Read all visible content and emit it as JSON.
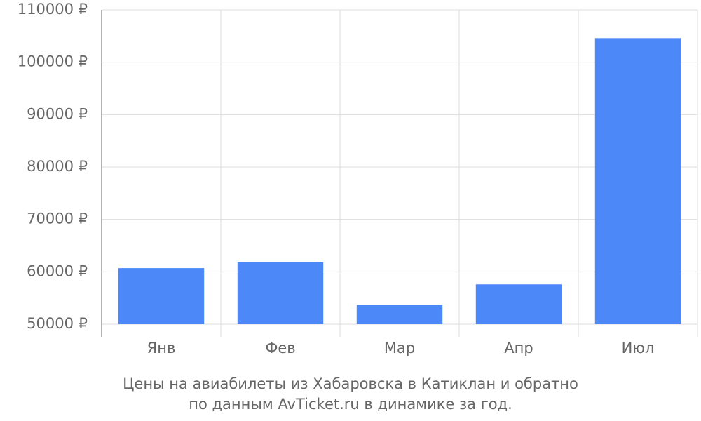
{
  "chart_data": {
    "type": "bar",
    "title": "Цены на авиабилеты из Хабаровска в Катиклан и обратно",
    "subtitle": "по данным AvTicket.ru в динамике за год.",
    "categories": [
      "Янв",
      "Фев",
      "Мар",
      "Апр",
      "Июл"
    ],
    "values": [
      60700,
      61800,
      53700,
      57600,
      104600
    ],
    "color": "#4d88f9",
    "ylim": [
      50000,
      110000
    ],
    "yticks": [
      {
        "value": 50000,
        "label": "50000 ₽"
      },
      {
        "value": 60000,
        "label": "60000 ₽"
      },
      {
        "value": 70000,
        "label": "70000 ₽"
      },
      {
        "value": 80000,
        "label": "80000 ₽"
      },
      {
        "value": 90000,
        "label": "90000 ₽"
      },
      {
        "value": 100000,
        "label": "100000 ₽"
      },
      {
        "value": 110000,
        "label": "110000 ₽"
      }
    ],
    "grid": true
  }
}
